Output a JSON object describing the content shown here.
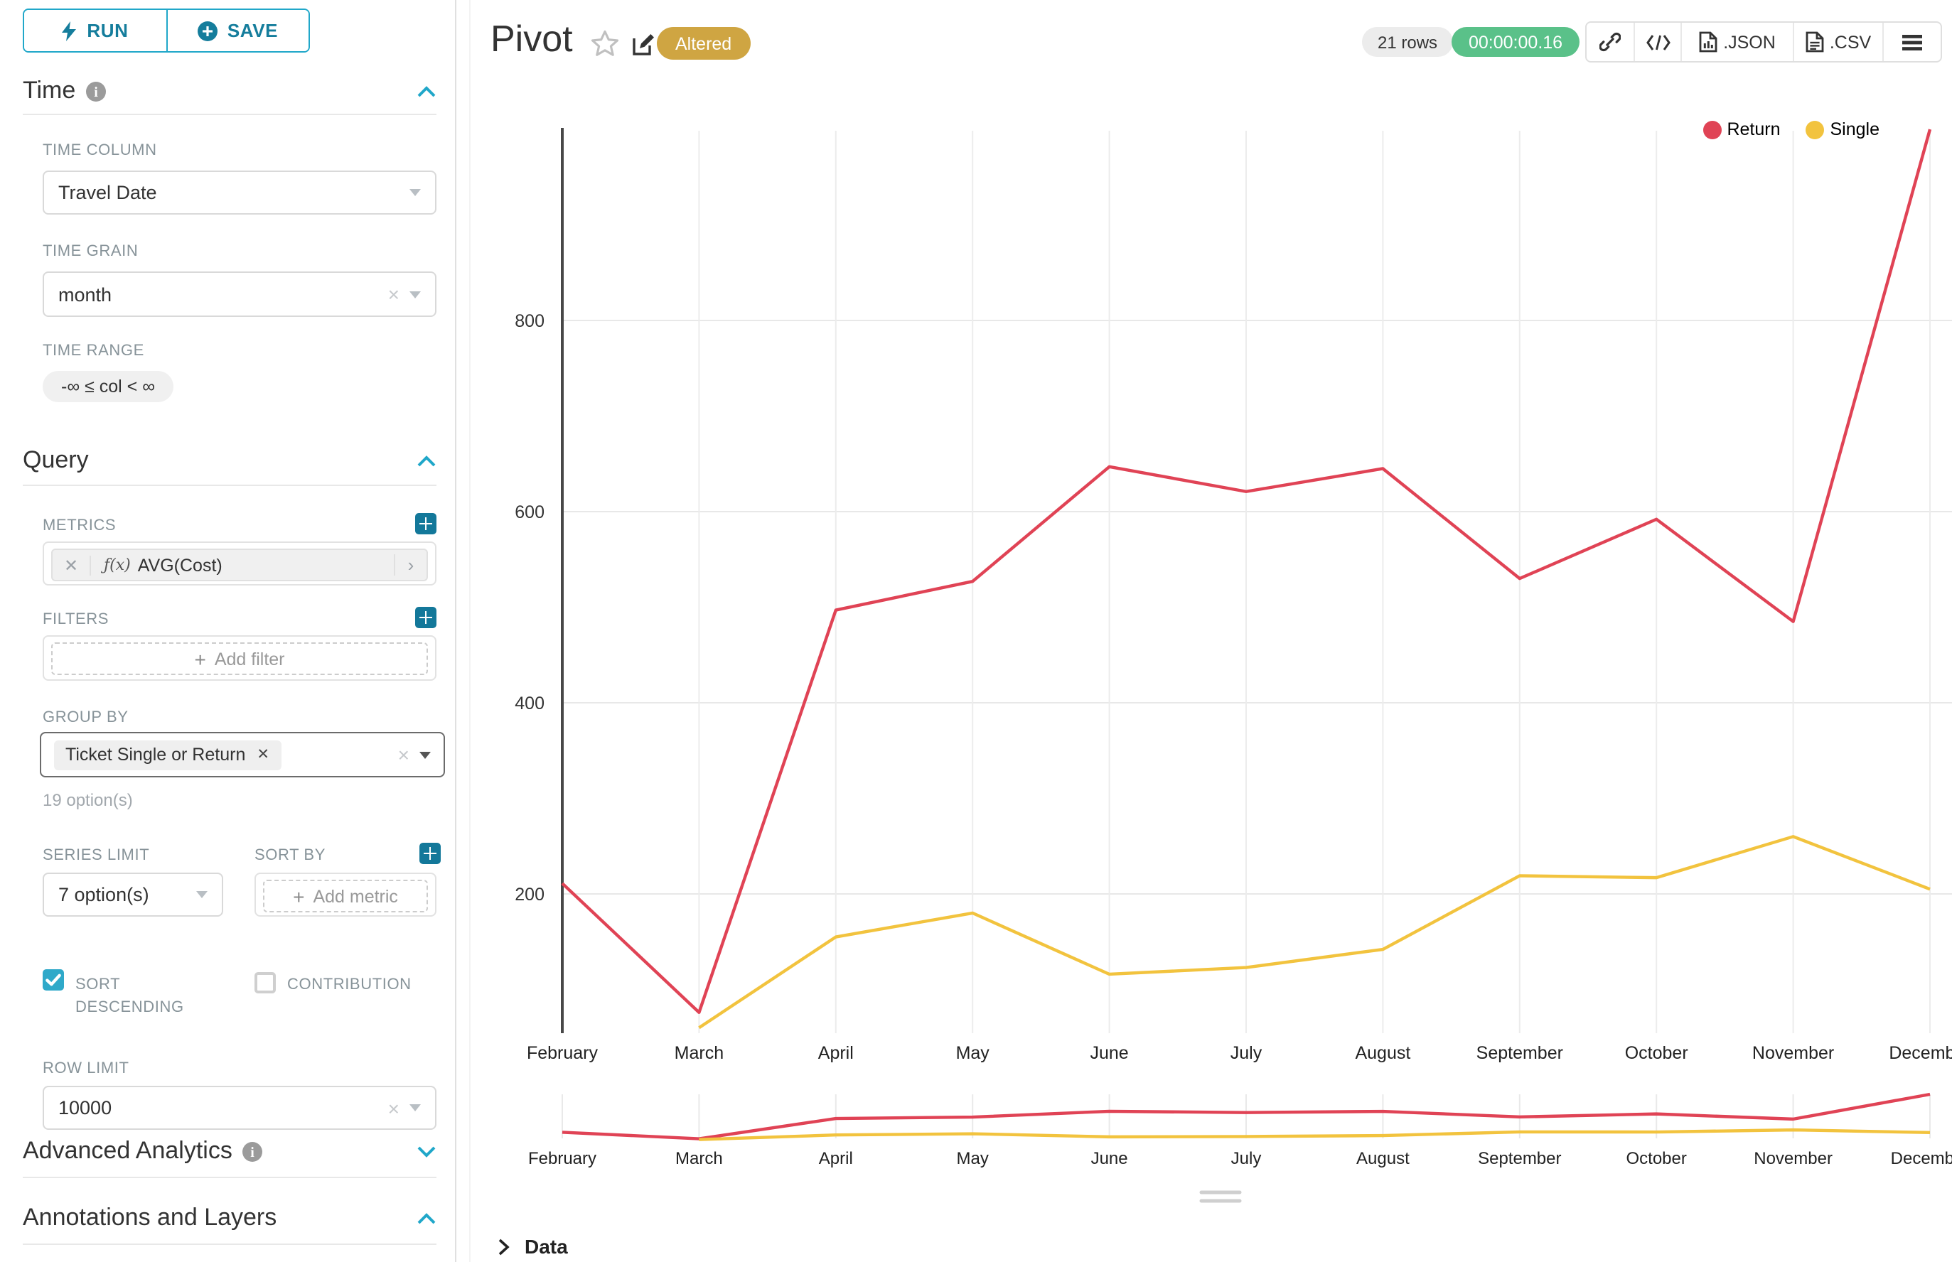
{
  "toolbar": {
    "run_label": "RUN",
    "save_label": "SAVE"
  },
  "sidebar": {
    "time_section": "Time",
    "query_section": "Query",
    "advanced_section": "Advanced Analytics",
    "annotations_section": "Annotations and Layers",
    "time": {
      "column_label": "TIME COLUMN",
      "column_value": "Travel Date",
      "grain_label": "TIME GRAIN",
      "grain_value": "month",
      "range_label": "TIME RANGE",
      "range_value": "-∞ ≤ col < ∞"
    },
    "query": {
      "metrics_label": "METRICS",
      "metric_fx": "ƒ(x)",
      "metric_value": "AVG(Cost)",
      "filters_label": "FILTERS",
      "add_filter_label": "Add filter",
      "group_by_label": "GROUP BY",
      "group_by_tag": "Ticket Single or Return",
      "options_hint": "19 option(s)",
      "series_limit_label": "SERIES LIMIT",
      "series_limit_value": "7 option(s)",
      "sort_by_label": "SORT BY",
      "add_metric_label": "Add metric",
      "sort_descending_label": "SORT DESCENDING",
      "contribution_label": "CONTRIBUTION",
      "row_limit_label": "ROW LIMIT",
      "row_limit_value": "10000"
    }
  },
  "header": {
    "title": "Pivot",
    "altered_badge": "Altered",
    "rows_badge": "21 rows",
    "timer": "00:00:00.16",
    "json_label": ".JSON",
    "csv_label": ".CSV"
  },
  "footer": {
    "data_label": "Data"
  },
  "colors": {
    "accent": "#20a7c9",
    "accent_dark": "#13789a",
    "return_series": "#e04355",
    "single_series": "#f2c33e",
    "altered_badge_bg": "#cfa542",
    "timer_badge_bg": "#5ac189"
  },
  "chart_data": {
    "type": "line",
    "title": "Pivot",
    "categories": [
      "February",
      "March",
      "April",
      "May",
      "June",
      "July",
      "August",
      "September",
      "October",
      "November",
      "December"
    ],
    "series": [
      {
        "name": "Return",
        "color": "#e04355",
        "values": [
          211,
          76,
          497,
          527,
          647,
          621,
          645,
          530,
          592,
          485,
          1000
        ]
      },
      {
        "name": "Single",
        "color": "#f2c33e",
        "values": [
          null,
          60,
          155,
          180,
          116,
          123,
          142,
          219,
          217,
          260,
          205
        ]
      }
    ],
    "xlabel": "",
    "ylabel": "",
    "yticks": [
      200,
      400,
      600,
      800
    ],
    "ylim": [
      40,
      1010
    ],
    "grid": true,
    "legend_position": "top-right",
    "context_brush": true
  }
}
